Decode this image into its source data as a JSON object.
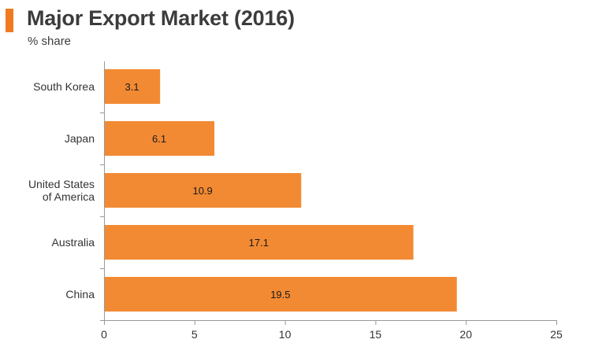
{
  "chart_data": {
    "type": "bar",
    "orientation": "horizontal",
    "title": "Major Export Market (2016)",
    "subtitle": "% share",
    "categories": [
      [
        "South Korea"
      ],
      [
        "Japan"
      ],
      [
        "United States",
        "of America"
      ],
      [
        "Australia"
      ],
      [
        "China"
      ]
    ],
    "values": [
      3.1,
      6.1,
      10.9,
      17.1,
      19.5
    ],
    "value_labels": [
      "3.1",
      "6.1",
      "10.9",
      "17.1",
      "19.5"
    ],
    "xlim": [
      0,
      25
    ],
    "xticks": [
      0,
      5,
      10,
      15,
      20,
      25
    ],
    "xlabel": "",
    "ylabel": "",
    "grid": false,
    "legend": "none",
    "colors": {
      "bar": "#f28a33",
      "accent": "#f07a22",
      "axis": "#999999",
      "text": "#333333"
    }
  }
}
